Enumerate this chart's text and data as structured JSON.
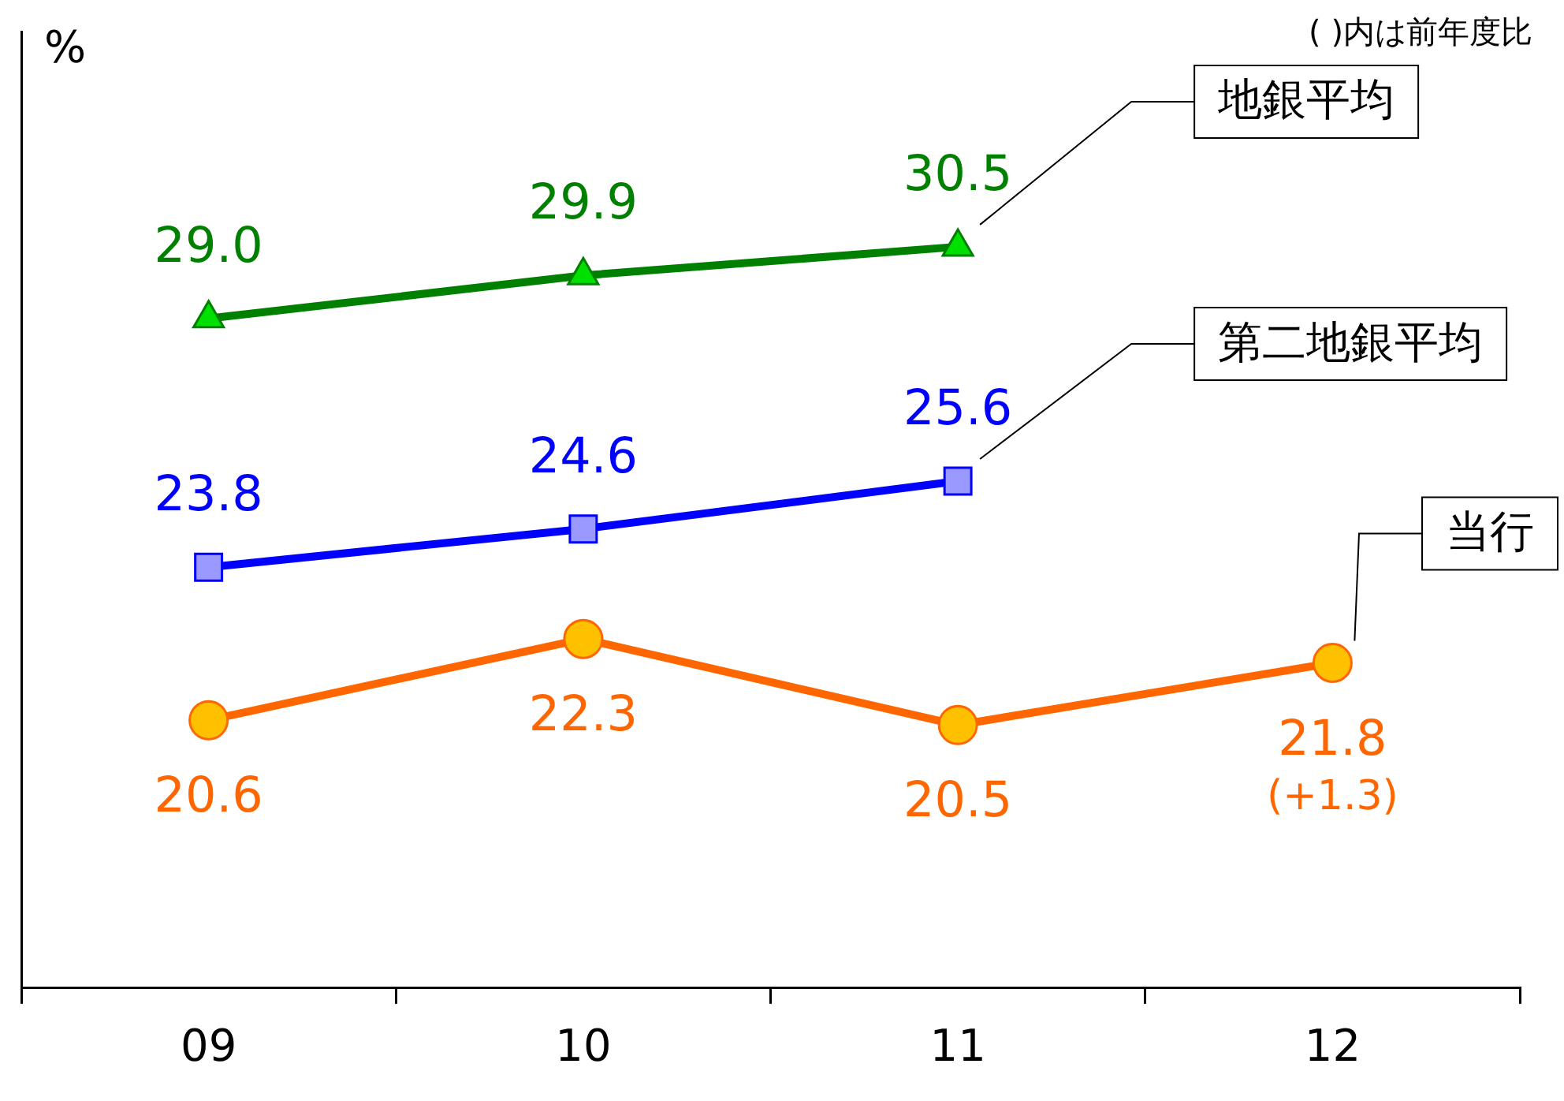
{
  "chart_data": {
    "type": "line",
    "ylabel": "%",
    "categories": [
      "09",
      "10",
      "11",
      "12"
    ],
    "series": [
      {
        "name": "地銀平均",
        "color": "#008000",
        "marker": "triangle",
        "values": [
          29.0,
          29.9,
          30.5,
          null
        ],
        "value_labels": [
          "29.0",
          "29.9",
          "30.5",
          null
        ]
      },
      {
        "name": "第二地銀平均",
        "color": "#0000ff",
        "marker": "square",
        "values": [
          23.8,
          24.6,
          25.6,
          null
        ]
      },
      {
        "name": "当行",
        "color": "#ff6600",
        "marker": "circle",
        "values": [
          20.6,
          22.3,
          20.5,
          21.8
        ]
      }
    ],
    "ylim": [
      15,
      35
    ],
    "tick_labels": "x",
    "data_labels": true,
    "grid": false,
    "legend": false,
    "annotations": [
      "( )内は前年度比",
      {
        "text": "(+1.3)",
        "x": "12",
        "y": 21.8
      }
    ]
  }
}
